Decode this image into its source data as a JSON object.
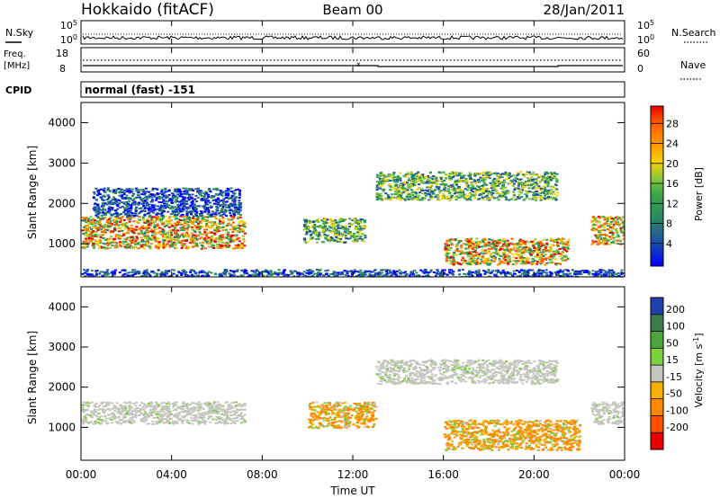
{
  "header": {
    "station": "Hokkaido (fitACF)",
    "beam": "Beam 00",
    "date": "28/Jan/2011"
  },
  "top_panels": {
    "nsky": {
      "label": "N.Sky",
      "ticks": [
        "10^5",
        "10^0"
      ]
    },
    "nsearch": {
      "label": "N.Search",
      "ticks": [
        "10^5",
        "10^0"
      ]
    },
    "freq": {
      "label_line1": "Freq.",
      "label_line2": "[MHz]",
      "ticks": [
        "18",
        "8"
      ]
    },
    "nave": {
      "label": "Nave",
      "ticks": [
        "60",
        "0"
      ]
    },
    "cpid": {
      "label": "CPID",
      "value": "normal (fast) -151"
    }
  },
  "xaxis": {
    "ticks": [
      "00:00",
      "04:00",
      "08:00",
      "12:00",
      "16:00",
      "20:00",
      "00:00"
    ],
    "label": "Time UT"
  },
  "chart_data": [
    {
      "type": "heatmap",
      "name": "power",
      "ylabel": "Slant Range [km]",
      "yticks": [
        "1000",
        "2000",
        "3000",
        "4000"
      ],
      "ylim": [
        180,
        4500
      ],
      "xlim": [
        0,
        24
      ],
      "colorbar": {
        "label": "Power [dB]",
        "ticks": [
          "4",
          "8",
          "12",
          "16",
          "20",
          "24",
          "28"
        ],
        "colors": [
          "#0000ff",
          "#1c4fa6",
          "#2a8a60",
          "#3aa84a",
          "#8cc63c",
          "#f6d000",
          "#ff9000",
          "#ff5a00",
          "#e80000"
        ]
      },
      "regions": [
        {
          "t0": 0.0,
          "t1": 7.2,
          "r0": 900,
          "r1": 1700,
          "level": "high"
        },
        {
          "t0": 0.5,
          "t1": 7.0,
          "r0": 1700,
          "r1": 2400,
          "level": "low"
        },
        {
          "t0": 9.8,
          "t1": 12.5,
          "r0": 1050,
          "r1": 1650,
          "level": "mid"
        },
        {
          "t0": 13.0,
          "t1": 21.0,
          "r0": 2100,
          "r1": 2800,
          "level": "mid"
        },
        {
          "t0": 16.0,
          "t1": 21.5,
          "r0": 500,
          "r1": 1150,
          "level": "high"
        },
        {
          "t0": 22.5,
          "t1": 24.0,
          "r0": 1000,
          "r1": 1700,
          "level": "high"
        },
        {
          "t0": 0.0,
          "t1": 24.0,
          "r0": 200,
          "r1": 380,
          "level": "low"
        }
      ]
    },
    {
      "type": "heatmap",
      "name": "velocity",
      "ylabel": "Slant Range [km]",
      "yticks": [
        "1000",
        "2000",
        "3000",
        "4000"
      ],
      "ylim": [
        180,
        4500
      ],
      "xlim": [
        0,
        24
      ],
      "colorbar": {
        "label": "Velocity [m s^-1]",
        "ticks": [
          "200",
          "100",
          "50",
          "15",
          "-15",
          "-50",
          "-100",
          "-200"
        ],
        "colors": [
          "#2040b0",
          "#3d7a4c",
          "#4aa63a",
          "#7cd040",
          "#c6c6c0",
          "#f6b000",
          "#ff8800",
          "#ff5000",
          "#e80000"
        ]
      },
      "regions": [
        {
          "t0": 0.0,
          "t1": 7.2,
          "r0": 1100,
          "r1": 1650,
          "level": "ground"
        },
        {
          "t0": 10.0,
          "t1": 13.0,
          "r0": 1000,
          "r1": 1650,
          "level": "neg"
        },
        {
          "t0": 13.0,
          "t1": 21.0,
          "r0": 2100,
          "r1": 2700,
          "level": "ground"
        },
        {
          "t0": 16.0,
          "t1": 22.0,
          "r0": 450,
          "r1": 1200,
          "level": "neg"
        },
        {
          "t0": 22.5,
          "t1": 24.0,
          "r0": 1100,
          "r1": 1650,
          "level": "ground"
        }
      ]
    }
  ]
}
